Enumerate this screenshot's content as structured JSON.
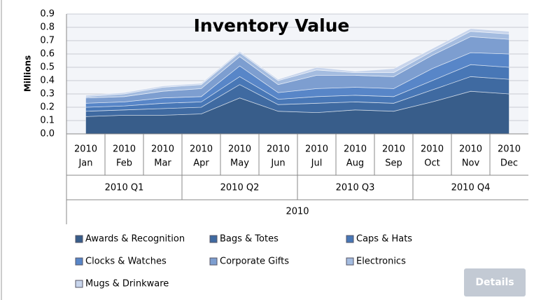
{
  "chart_data": {
    "type": "stacked_area",
    "title": "Inventory Value",
    "y_label": "Millions",
    "categories": [
      [
        "2010",
        "Jan"
      ],
      [
        "2010",
        "Feb"
      ],
      [
        "2010",
        "Mar"
      ],
      [
        "2010",
        "Apr"
      ],
      [
        "2010",
        "May"
      ],
      [
        "2010",
        "Jun"
      ],
      [
        "2010",
        "Jul"
      ],
      [
        "2010",
        "Aug"
      ],
      [
        "2010",
        "Sep"
      ],
      [
        "2010",
        "Oct"
      ],
      [
        "2010",
        "Nov"
      ],
      [
        "2010",
        "Dec"
      ]
    ],
    "quarters": [
      "2010 Q1",
      "2010 Q2",
      "2010 Q3",
      "2010 Q4"
    ],
    "year": "2010",
    "series": [
      {
        "name": "Awards & Recognition",
        "color": "#385d8a",
        "values": [
          0.13,
          0.14,
          0.14,
          0.15,
          0.27,
          0.17,
          0.16,
          0.18,
          0.17,
          0.24,
          0.32,
          0.3
        ]
      },
      {
        "name": "Bags & Totes",
        "color": "#3f6aa1",
        "values": [
          0.04,
          0.04,
          0.05,
          0.05,
          0.1,
          0.05,
          0.07,
          0.06,
          0.06,
          0.09,
          0.11,
          0.11
        ]
      },
      {
        "name": "Caps & Hats",
        "color": "#4877b6",
        "values": [
          0.03,
          0.03,
          0.04,
          0.04,
          0.06,
          0.04,
          0.05,
          0.05,
          0.05,
          0.07,
          0.09,
          0.09
        ]
      },
      {
        "name": "Clocks & Watches",
        "color": "#5886c8",
        "values": [
          0.03,
          0.03,
          0.04,
          0.04,
          0.08,
          0.05,
          0.06,
          0.06,
          0.06,
          0.09,
          0.09,
          0.1
        ]
      },
      {
        "name": "Corporate Gifts",
        "color": "#7d9ed0",
        "values": [
          0.04,
          0.04,
          0.05,
          0.06,
          0.07,
          0.06,
          0.1,
          0.09,
          0.09,
          0.1,
          0.12,
          0.11
        ]
      },
      {
        "name": "Electronics",
        "color": "#a4bce0",
        "values": [
          0.01,
          0.02,
          0.03,
          0.03,
          0.03,
          0.03,
          0.04,
          0.02,
          0.03,
          0.03,
          0.04,
          0.04
        ]
      },
      {
        "name": "Mugs & Drinkware",
        "color": "#c8d5ec",
        "values": [
          0.01,
          0.01,
          0.01,
          0.01,
          0.01,
          0.01,
          0.02,
          0.01,
          0.03,
          0.02,
          0.02,
          0.02
        ]
      }
    ],
    "ylim": [
      0,
      0.9
    ],
    "yticks": [
      {
        "value": 0,
        "label": "0.0"
      },
      0.1,
      0.2,
      0.3,
      0.4,
      0.5,
      0.6,
      0.7,
      0.8,
      0.9
    ],
    "grid": true
  },
  "details_button": "Details"
}
